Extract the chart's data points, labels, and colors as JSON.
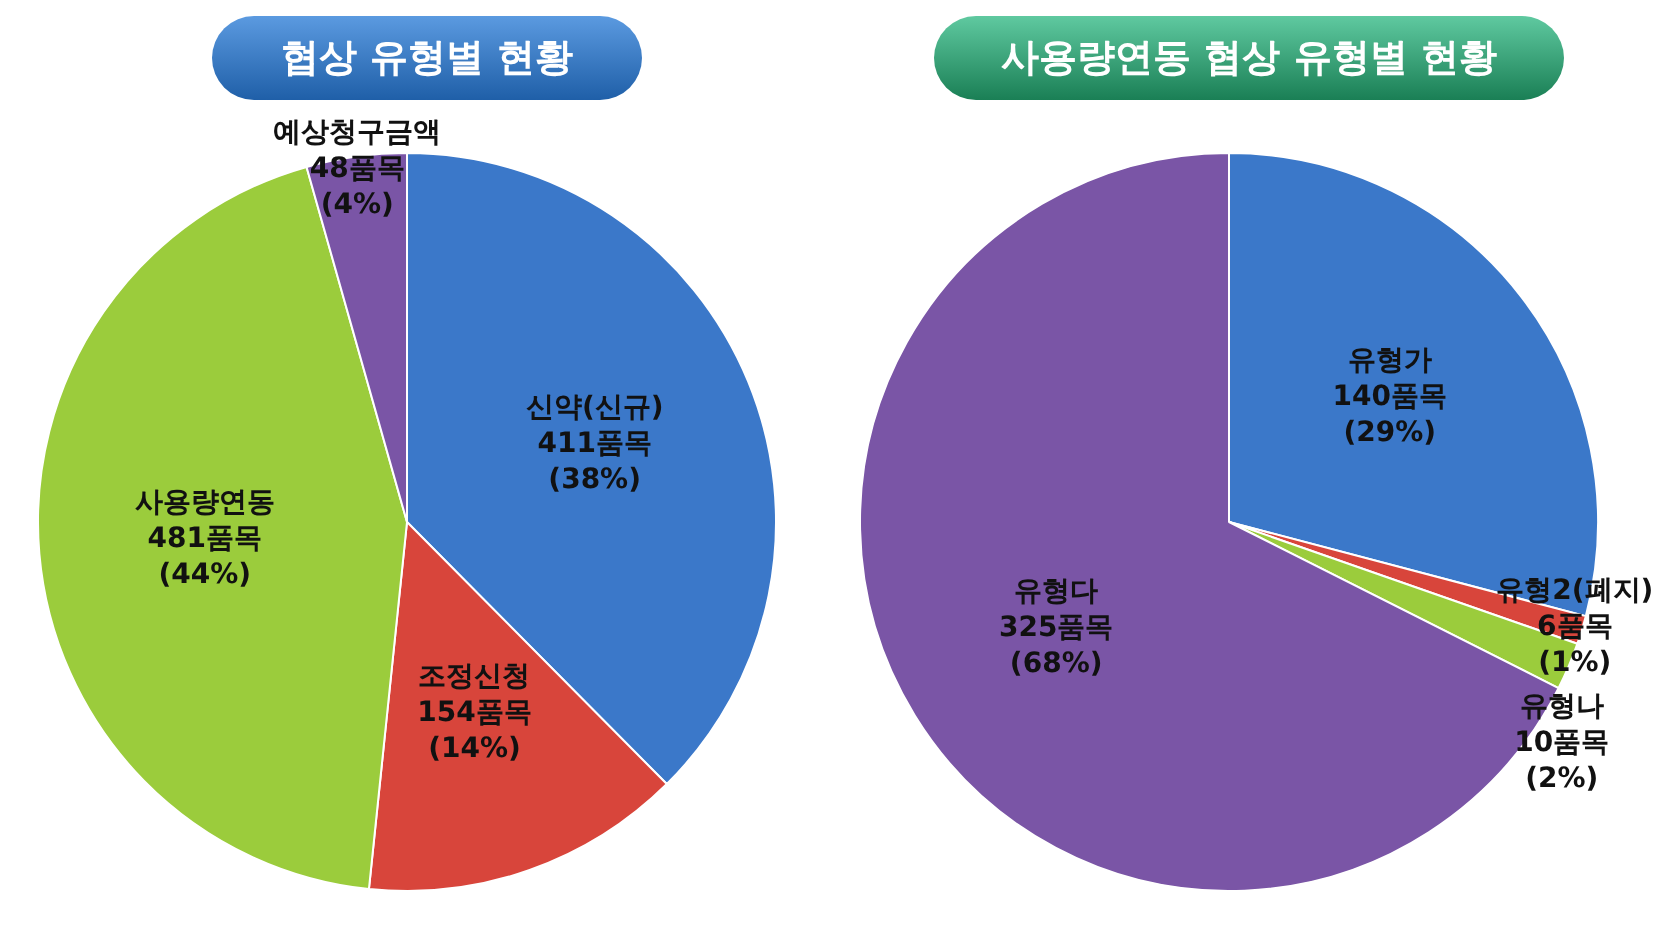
{
  "chart_data": [
    {
      "type": "pie",
      "title": "협상 유형별 현황",
      "categories": [
        "신약(신규)",
        "조정신청",
        "사용량연동",
        "예상청구금액"
      ],
      "values": [
        411,
        154,
        481,
        48
      ],
      "colors": [
        "#3b78c9",
        "#d8453b",
        "#9bcc3c",
        "#7a55a6"
      ],
      "value_labels": [
        "411품목\n(38%)",
        "154품목\n(14%)",
        "481품목\n(44%)",
        "48품목\n(4%)"
      ]
    },
    {
      "type": "pie",
      "title": "사용량연동 협상 유형별 현황",
      "categories": [
        "유형가",
        "유형2(폐지)",
        "유형나",
        "유형다"
      ],
      "values": [
        140,
        6,
        10,
        325
      ],
      "colors": [
        "#3b78c9",
        "#d8453b",
        "#9bcc3c",
        "#7a55a6"
      ],
      "value_labels": [
        "140품목\n(29%)",
        "6품목\n(1%)",
        "10품목\n(2%)",
        "325품목\n(68%)"
      ]
    }
  ]
}
